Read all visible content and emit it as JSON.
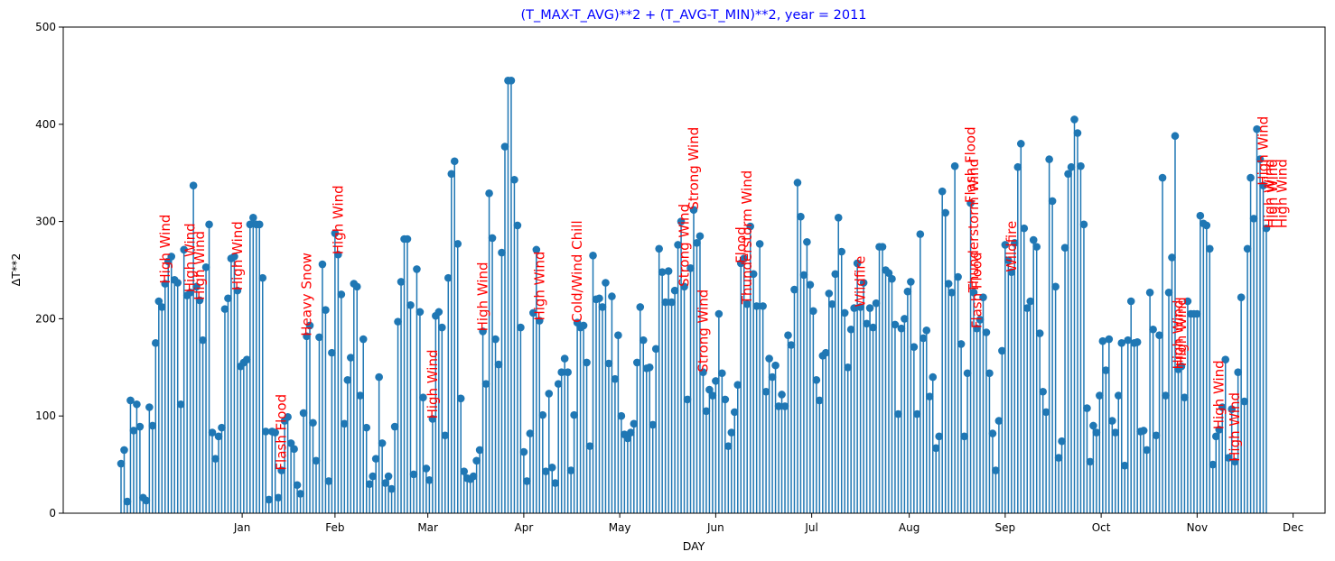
{
  "chart_data": {
    "type": "stem",
    "title": "(T_MAX-T_AVG)**2 + (T_AVG-T_MIN)**2, year = 2011",
    "xlabel": "DAY",
    "ylabel": "ΔT**2",
    "ylim": [
      0,
      500
    ],
    "yticks": [
      0,
      100,
      200,
      300,
      400,
      500
    ],
    "month_ticks": [
      "Jan",
      "Feb",
      "Mar",
      "Apr",
      "May",
      "Jun",
      "Jul",
      "Aug",
      "Sep",
      "Oct",
      "Nov",
      "Dec"
    ],
    "colors": {
      "stem": "#1f77b4",
      "title": "#0000ff",
      "event": "#ff0000"
    },
    "values": [
      51,
      65,
      12,
      116,
      85,
      112,
      89,
      16,
      13,
      109,
      90,
      175,
      218,
      212,
      236,
      259,
      264,
      240,
      237,
      112,
      271,
      224,
      227,
      337,
      233,
      219,
      178,
      253,
      297,
      83,
      56,
      79,
      88,
      210,
      221,
      262,
      264,
      229,
      151,
      155,
      158,
      297,
      304,
      297,
      297,
      242,
      84,
      14,
      84,
      83,
      16,
      44,
      95,
      99,
      72,
      66,
      29,
      20,
      103,
      182,
      193,
      93,
      54,
      181,
      256,
      209,
      33,
      165,
      288,
      266,
      225,
      92,
      137,
      160,
      236,
      233,
      121,
      179,
      88,
      30,
      38,
      56,
      140,
      72,
      31,
      38,
      25,
      89,
      197,
      238,
      282,
      282,
      214,
      40,
      251,
      207,
      119,
      46,
      34,
      97,
      203,
      207,
      191,
      80,
      242,
      349,
      362,
      277,
      118,
      43,
      36,
      35,
      38,
      54,
      65,
      187,
      133,
      329,
      283,
      179,
      153,
      268,
      377,
      445,
      445,
      343,
      296,
      191,
      63,
      33,
      82,
      206,
      271,
      198,
      101,
      43,
      123,
      47,
      31,
      133,
      145,
      159,
      145,
      44,
      101,
      196,
      191,
      193,
      155,
      69,
      265,
      220,
      221,
      212,
      237,
      154,
      223,
      138,
      183,
      100,
      81,
      77,
      83,
      92,
      155,
      212,
      178,
      149,
      150,
      91,
      169,
      272,
      248,
      217,
      249,
      217,
      229,
      276,
      300,
      233,
      117,
      252,
      312,
      278,
      285,
      145,
      105,
      127,
      121,
      136,
      205,
      144,
      117,
      69,
      83,
      104,
      132,
      257,
      262,
      215,
      295,
      246,
      213,
      277,
      213,
      125,
      159,
      140,
      152,
      110,
      122,
      110,
      183,
      173,
      230,
      340,
      305,
      245,
      279,
      235,
      208,
      137,
      116,
      162,
      165,
      226,
      215,
      246,
      304,
      269,
      206,
      150,
      189,
      211,
      257,
      212,
      237,
      195,
      211,
      191,
      216,
      274,
      274,
      250,
      247,
      241,
      194,
      102,
      190,
      200,
      228,
      238,
      171,
      102,
      287,
      180,
      188,
      120,
      140,
      67,
      79,
      331,
      309,
      236,
      227,
      357,
      243,
      174,
      79,
      144,
      319,
      227,
      190,
      199,
      222,
      186,
      144,
      82,
      44,
      95,
      167,
      276,
      260,
      248,
      278,
      356,
      380,
      293,
      211,
      218,
      281,
      274,
      185,
      125,
      104,
      364,
      321,
      233,
      57,
      74,
      273,
      349,
      356,
      405,
      391,
      357,
      297,
      108,
      53,
      90,
      83,
      121,
      177,
      147,
      179,
      95,
      83,
      121,
      175,
      49,
      178,
      218,
      175,
      176,
      84,
      85,
      65,
      227,
      189,
      80,
      183,
      345,
      121,
      227,
      263,
      388,
      148,
      151,
      119,
      218,
      205,
      205,
      205,
      306,
      298,
      296,
      272,
      50,
      79,
      86,
      109,
      158,
      57,
      107,
      53,
      145,
      222,
      115,
      272,
      345,
      303,
      395,
      364,
      337,
      293
    ],
    "events": [
      {
        "day": 15,
        "text": "High Wind"
      },
      {
        "day": 23,
        "text": "High Wind"
      },
      {
        "day": 26,
        "text": "High Wind"
      },
      {
        "day": 38,
        "text": "High Wind"
      },
      {
        "day": 52,
        "text": "Flash Flood"
      },
      {
        "day": 60,
        "text": "Heavy Snow"
      },
      {
        "day": 70,
        "text": "High Wind"
      },
      {
        "day": 100,
        "text": "High Wind"
      },
      {
        "day": 116,
        "text": "High Wind"
      },
      {
        "day": 134,
        "text": "High Wind"
      },
      {
        "day": 146,
        "text": "Cold/Wind Chill"
      },
      {
        "day": 180,
        "text": "Strong Wind"
      },
      {
        "day": 183,
        "text": "Strong Wind"
      },
      {
        "day": 186,
        "text": "Strong Wind"
      },
      {
        "day": 198,
        "text": "Flood"
      },
      {
        "day": 200,
        "text": "Thunderstorm Wind"
      },
      {
        "day": 236,
        "text": "Wildfire"
      },
      {
        "day": 271,
        "text": "Flash Flood"
      },
      {
        "day": 272,
        "text": "Thunderstorm Wind"
      },
      {
        "day": 273,
        "text": "Flash Flood"
      },
      {
        "day": 284,
        "text": "Wildfire"
      },
      {
        "day": 337,
        "text": "High Wind"
      },
      {
        "day": 338,
        "text": "High Wind"
      },
      {
        "day": 350,
        "text": "High Wind"
      },
      {
        "day": 355,
        "text": "High Wind"
      },
      {
        "day": 364,
        "text": "High Wind"
      },
      {
        "day": 366,
        "text": "High Wind"
      },
      {
        "day": 367,
        "text": "High Wind"
      },
      {
        "day": 370,
        "text": "High Wind"
      }
    ]
  }
}
